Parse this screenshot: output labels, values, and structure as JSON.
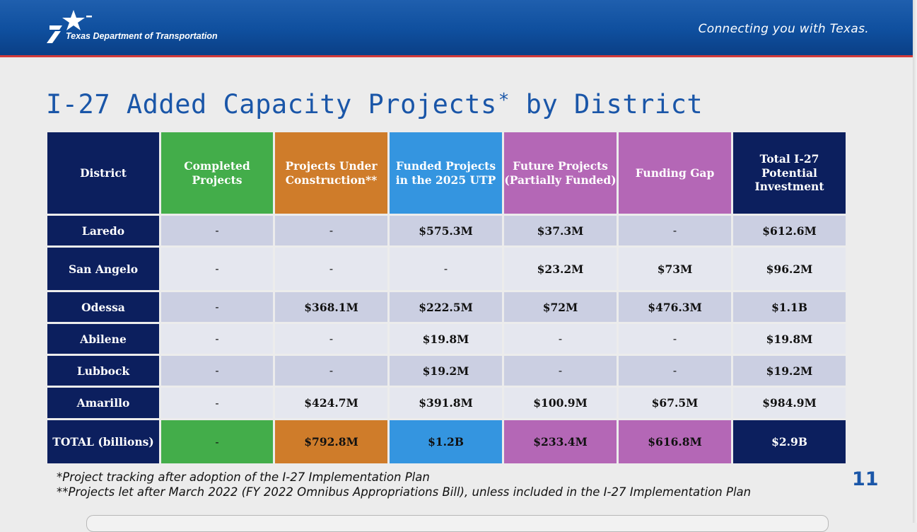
{
  "header": {
    "logo_text": "Texas Department of Transportation",
    "tagline": "Connecting you with Texas."
  },
  "slide": {
    "title": "I-27 Added Capacity Projects",
    "title_mark": "*",
    "title_suffix": " by District",
    "page_number": "11"
  },
  "table": {
    "headers": [
      "District",
      "Completed Projects",
      "Projects Under Construction**",
      "Funded Projects in the 2025 UTP",
      "Future Projects (Partially Funded)",
      "Funding Gap",
      "Total I-27 Potential Investment"
    ],
    "rows": [
      {
        "district": "Laredo",
        "completed": "-",
        "under": "-",
        "funded": "$575.3M",
        "future": "$37.3M",
        "gap": "-",
        "total": "$612.6M"
      },
      {
        "district": "San Angelo",
        "completed": "-",
        "under": "-",
        "funded": "-",
        "future": "$23.2M",
        "gap": "$73M",
        "total": "$96.2M"
      },
      {
        "district": "Odessa",
        "completed": "-",
        "under": "$368.1M",
        "funded": "$222.5M",
        "future": "$72M",
        "gap": "$476.3M",
        "total": "$1.1B"
      },
      {
        "district": "Abilene",
        "completed": "-",
        "under": "-",
        "funded": "$19.8M",
        "future": "-",
        "gap": "-",
        "total": "$19.8M"
      },
      {
        "district": "Lubbock",
        "completed": "-",
        "under": "-",
        "funded": "$19.2M",
        "future": "-",
        "gap": "-",
        "total": "$19.2M"
      },
      {
        "district": "Amarillo",
        "completed": "-",
        "under": "$424.7M",
        "funded": "$391.8M",
        "future": "$100.9M",
        "gap": "$67.5M",
        "total": "$984.9M"
      }
    ],
    "total_row": {
      "district": "TOTAL (billions)",
      "completed": "-",
      "under": "$792.8M",
      "funded": "$1.2B",
      "future": "$233.4M",
      "gap": "$616.8M",
      "total": "$2.9B"
    }
  },
  "footnotes": [
    "*Project tracking after adoption of the I-27 Implementation Plan",
    "**Projects let after March 2022 (FY 2022 Omnibus Appropriations Bill), unless included in the I-27 Implementation Plan"
  ],
  "colors": {
    "header_blue": "#0f4f9e",
    "accent_red": "#d23a3a",
    "navy": "#0c1f5e",
    "green": "#43ad4a",
    "orange": "#cf7c2a",
    "blue": "#3495e0",
    "purple": "#b467b6",
    "title_blue": "#1a56a8"
  }
}
